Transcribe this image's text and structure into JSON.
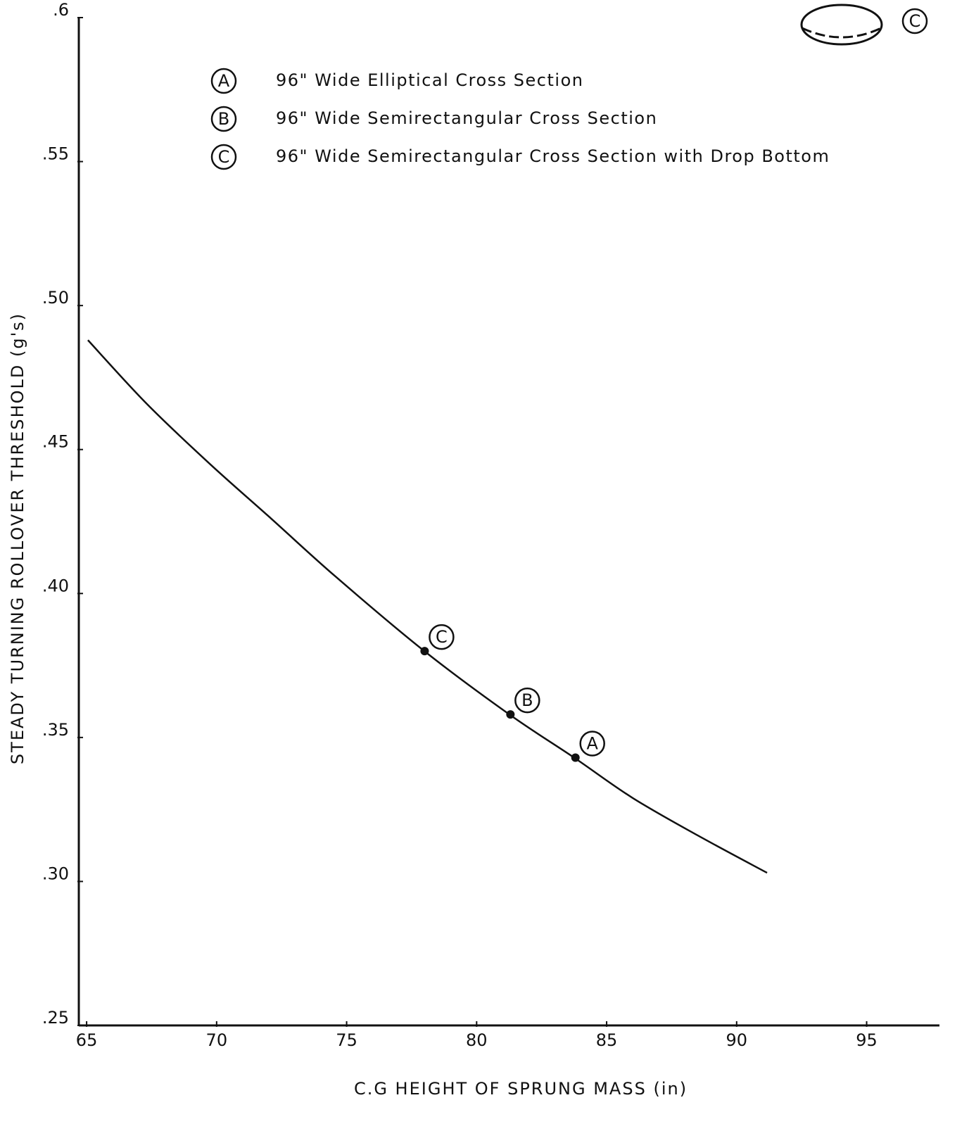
{
  "chart_data": {
    "type": "line",
    "xlabel": "C.G HEIGHT OF SPRUNG MASS (in)",
    "ylabel": "STEADY TURNING ROLLOVER THRESHOLD (g's)",
    "xlim": [
      64.7,
      97.8
    ],
    "ylim": [
      0.25,
      0.6
    ],
    "xticks": [
      65,
      70,
      75,
      80,
      85,
      90,
      95
    ],
    "yticks": [
      {
        "value": 0.6,
        "label": ".6"
      },
      {
        "value": 0.55,
        "label": ".55"
      },
      {
        "value": 0.5,
        "label": ".50"
      },
      {
        "value": 0.45,
        "label": ".45"
      },
      {
        "value": 0.4,
        "label": ".40"
      },
      {
        "value": 0.35,
        "label": ".35"
      },
      {
        "value": 0.3,
        "label": ".30"
      },
      {
        "value": 0.25,
        "label": ".25"
      }
    ],
    "series": [
      {
        "color": "#111111",
        "x": [
          65.05,
          67.3,
          69.74,
          72.1,
          74.56,
          77.99,
          81.26,
          83.75,
          86.0,
          88.5,
          91.17
        ],
        "values": [
          0.488,
          0.466,
          0.445,
          0.426,
          0.406,
          0.38,
          0.358,
          0.343,
          0.329,
          0.316,
          0.303
        ]
      }
    ],
    "points": [
      {
        "label": "C",
        "x": 78.0,
        "y": 0.38
      },
      {
        "label": "B",
        "x": 81.3,
        "y": 0.358
      },
      {
        "label": "A",
        "x": 83.8,
        "y": 0.343
      }
    ],
    "legend": [
      {
        "key": "A",
        "text": "96\" Wide Elliptical Cross Section"
      },
      {
        "key": "B",
        "text": "96\" Wide Semirectangular Cross Section"
      },
      {
        "key": "C",
        "text": "96\" Wide Semirectangular Cross Section with Drop Bottom"
      }
    ],
    "icon_label": "C"
  }
}
